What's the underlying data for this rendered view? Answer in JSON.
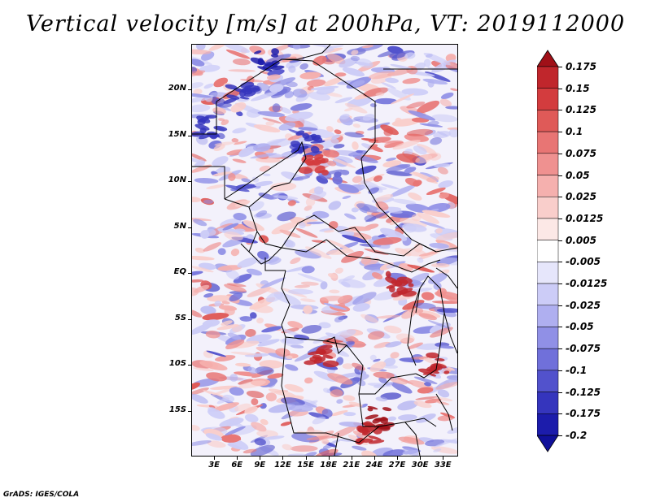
{
  "title": "Vertical velocity [m/s] at 200hPa, VT: 2019112000",
  "credit": "GrADS: IGES/COLA",
  "map": {
    "lon_range_deg": [
      0,
      35
    ],
    "lat_range_deg": [
      -20,
      25
    ],
    "lat_ticks": [
      {
        "label": "20N",
        "value": 20
      },
      {
        "label": "15N",
        "value": 15
      },
      {
        "label": "10N",
        "value": 10
      },
      {
        "label": "5N",
        "value": 5
      },
      {
        "label": "EQ",
        "value": 0
      },
      {
        "label": "5S",
        "value": -5
      },
      {
        "label": "10S",
        "value": -10
      },
      {
        "label": "15S",
        "value": -15
      }
    ],
    "lon_ticks": [
      {
        "label": "3E",
        "value": 3
      },
      {
        "label": "6E",
        "value": 6
      },
      {
        "label": "9E",
        "value": 9
      },
      {
        "label": "12E",
        "value": 12
      },
      {
        "label": "15E",
        "value": 15
      },
      {
        "label": "18E",
        "value": 18
      },
      {
        "label": "21E",
        "value": 21
      },
      {
        "label": "24E",
        "value": 24
      },
      {
        "label": "27E",
        "value": 27
      },
      {
        "label": "30E",
        "value": 30
      },
      {
        "label": "33E",
        "value": 33
      }
    ]
  },
  "colorbar": {
    "levels": [
      "0.175",
      "0.15",
      "0.125",
      "0.1",
      "0.075",
      "0.05",
      "0.025",
      "0.0125",
      "0.005",
      "-0.005",
      "-0.0125",
      "-0.025",
      "-0.05",
      "-0.075",
      "-0.1",
      "-0.125",
      "-0.175",
      "-0.2"
    ],
    "colors": [
      "#a01018",
      "#c0262c",
      "#d33c3e",
      "#df5a58",
      "#e87574",
      "#ef9190",
      "#f5b0ae",
      "#f9cecb",
      "#fce8e6",
      "#ffffff",
      "#e6e6fb",
      "#ccccf7",
      "#afaff0",
      "#9090e6",
      "#7070da",
      "#5252cc",
      "#3535bd",
      "#1c1cab",
      "#10109a"
    ]
  }
}
